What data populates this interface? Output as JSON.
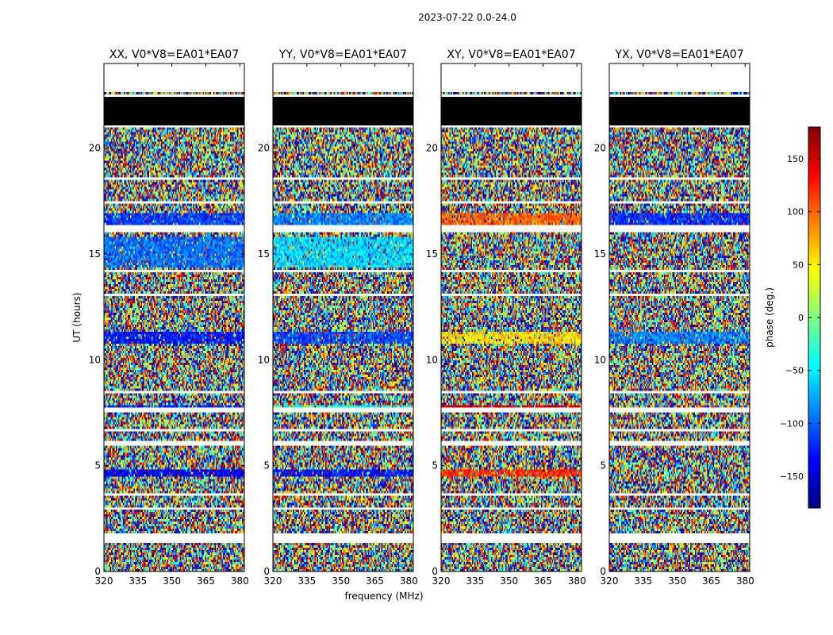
{
  "figure": {
    "suptitle": "2023-07-22 0.0-24.0",
    "xlabel": "frequency (MHz)",
    "ylabel": "UT (hours)"
  },
  "chart_data": {
    "type": "heatmap",
    "title": "2023-07-22 0.0-24.0",
    "xlabel": "frequency (MHz)",
    "ylabel": "UT (hours)",
    "xlim": [
      320,
      382
    ],
    "ylim": [
      0,
      24
    ],
    "xticks": [
      320,
      335,
      350,
      365,
      380
    ],
    "yticks": [
      0,
      5,
      10,
      15,
      20
    ],
    "panels": [
      {
        "name": "XX, V0*V8=EA01*EA07",
        "pol": "XX"
      },
      {
        "name": "YY, V0*V8=EA01*EA07",
        "pol": "YY"
      },
      {
        "name": "XY, V0*V8=EA01*EA07",
        "pol": "XY"
      },
      {
        "name": "YX, V0*V8=EA01*EA07",
        "pol": "YX"
      }
    ],
    "colorbar": {
      "label": "phase (deg.)",
      "range": [
        -180,
        180
      ],
      "ticks": [
        -150,
        -100,
        -50,
        0,
        50,
        100,
        150
      ],
      "colormap": "jet"
    },
    "flagged_intervals_hours": [
      [
        0.55,
        0.6
      ],
      [
        1.3,
        1.55
      ],
      [
        1.6,
        1.85
      ],
      [
        2.95,
        3.05
      ],
      [
        3.55,
        3.65
      ],
      [
        5.9,
        6.15
      ],
      [
        6.6,
        6.7
      ],
      [
        7.55,
        7.7
      ],
      [
        8.4,
        8.55
      ],
      [
        11.5,
        11.6
      ],
      [
        13.0,
        13.1
      ],
      [
        14.1,
        14.2
      ],
      [
        16.0,
        16.4
      ],
      [
        17.4,
        17.5
      ],
      [
        18.5,
        18.6
      ],
      [
        20.95,
        21.05
      ],
      [
        22.4,
        22.55
      ],
      [
        22.6,
        24.0
      ]
    ],
    "black_bands_hours": [
      [
        21.1,
        21.6
      ],
      [
        21.7,
        22.05
      ],
      [
        22.1,
        22.4
      ]
    ],
    "coherent_bands": [
      {
        "hours": [
          10.8,
          11.35
        ],
        "XX": -130,
        "YY": -110,
        "XY": 60,
        "YX": -90
      },
      {
        "hours": [
          16.4,
          16.9
        ],
        "XX": -115,
        "YY": -90,
        "XY": 100,
        "YX": -120
      },
      {
        "hours": [
          14.4,
          15.8
        ],
        "XX": -95,
        "YY": -60,
        "XY": null,
        "YX": null
      },
      {
        "hours": [
          4.5,
          4.85
        ],
        "XX": -140,
        "YY": -130,
        "XY": 120,
        "YX": null
      },
      {
        "hours": [
          7.6,
          7.8
        ],
        "XX": -120,
        "YY": -40,
        "XY": 150,
        "YX": null
      }
    ]
  }
}
